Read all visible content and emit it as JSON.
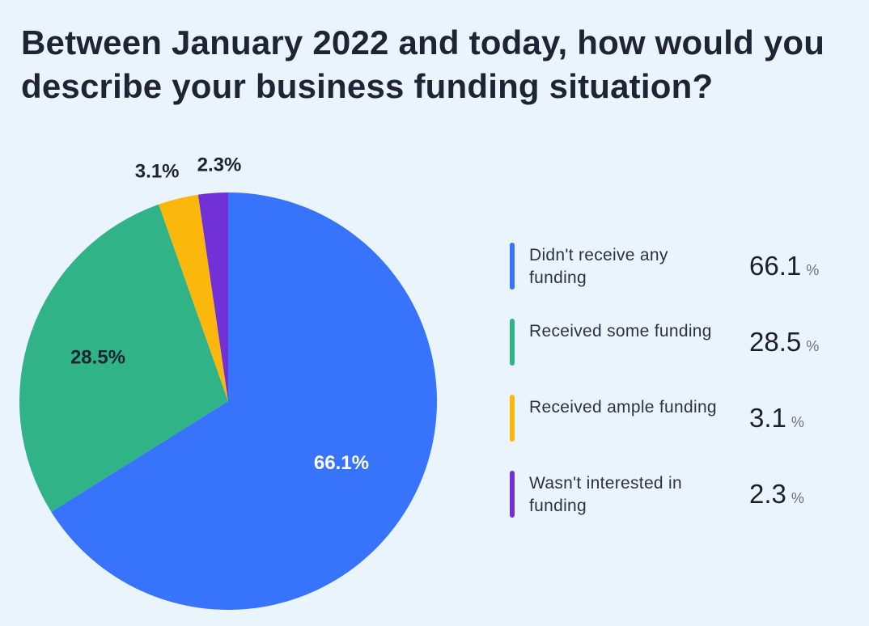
{
  "chart_data": {
    "type": "pie",
    "title": "Between January 2022 and today, how would you describe your business funding situation?",
    "slices": [
      {
        "label": "Didn't receive any funding",
        "value": 66.1,
        "display": "66.1%",
        "legend_value": "66.1",
        "unit": "%",
        "color": "#3873fb",
        "label_color": "#ffffff"
      },
      {
        "label": "Received some funding",
        "value": 28.5,
        "display": "28.5%",
        "legend_value": "28.5",
        "unit": "%",
        "color": "#2fb387",
        "label_color": "#1c2433"
      },
      {
        "label": "Received ample funding",
        "value": 3.1,
        "display": "3.1%",
        "legend_value": "3.1",
        "unit": "%",
        "color": "#fbb70c",
        "label_color": "#1c2433"
      },
      {
        "label": "Wasn't interested in funding",
        "value": 2.3,
        "display": "2.3%",
        "legend_value": "2.3",
        "unit": "%",
        "color": "#7131d6",
        "label_color": "#1c2433"
      }
    ],
    "start_angle": "12 o'clock",
    "direction": "clockwise",
    "legend_placement": "right"
  }
}
